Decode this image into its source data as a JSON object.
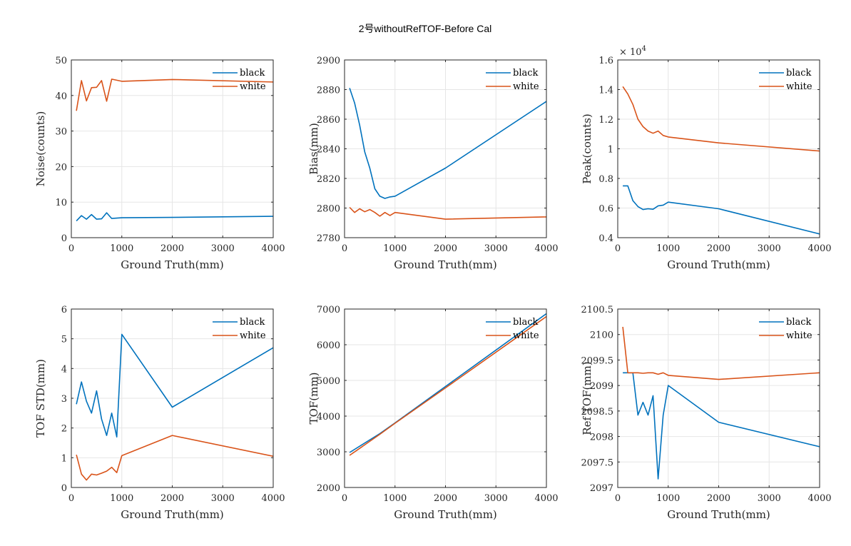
{
  "figure_title": "2号withoutRefTOF-Before Cal",
  "colors": {
    "black": "#0072BD",
    "white": "#D95319"
  },
  "chart_data": [
    {
      "type": "line",
      "xlabel": "Ground Truth(mm)",
      "ylabel": "Noise(counts)",
      "xlim": [
        0,
        4000
      ],
      "ylim": [
        0,
        50
      ],
      "xticks": [
        0,
        1000,
        2000,
        3000,
        4000
      ],
      "yticks": [
        0,
        10,
        20,
        30,
        40,
        50
      ],
      "grid": true,
      "legend_position": "top-right",
      "exponent": "",
      "series": [
        {
          "name": "black",
          "x": [
            100,
            200,
            300,
            400,
            500,
            600,
            700,
            800,
            1000,
            2000,
            4000
          ],
          "y": [
            4.7,
            6.2,
            5.2,
            6.5,
            5.2,
            5.3,
            7.0,
            5.4,
            5.6,
            5.7,
            6.0
          ]
        },
        {
          "name": "white",
          "x": [
            100,
            200,
            300,
            400,
            500,
            600,
            700,
            800,
            1000,
            2000,
            4000
          ],
          "y": [
            35.7,
            44.2,
            38.5,
            42.2,
            42.3,
            44.2,
            38.4,
            44.6,
            44.0,
            44.5,
            43.8
          ]
        }
      ]
    },
    {
      "type": "line",
      "xlabel": "Ground Truth(mm)",
      "ylabel": "Bias(mm)",
      "xlim": [
        0,
        4000
      ],
      "ylim": [
        2780,
        2900
      ],
      "xticks": [
        0,
        1000,
        2000,
        3000,
        4000
      ],
      "yticks": [
        2780,
        2800,
        2820,
        2840,
        2860,
        2880,
        2900
      ],
      "grid": true,
      "legend_position": "top-right",
      "exponent": "",
      "series": [
        {
          "name": "black",
          "x": [
            100,
            200,
            300,
            400,
            500,
            600,
            700,
            800,
            900,
            1000,
            2000,
            4000
          ],
          "y": [
            2881,
            2871,
            2856,
            2838,
            2827,
            2813,
            2808,
            2806.5,
            2807.5,
            2808,
            2827,
            2872
          ]
        },
        {
          "name": "white",
          "x": [
            100,
            200,
            300,
            400,
            500,
            600,
            700,
            800,
            900,
            1000,
            2000,
            4000
          ],
          "y": [
            2800.5,
            2797,
            2799.5,
            2797.5,
            2799,
            2797,
            2794.5,
            2797,
            2795,
            2797,
            2792.5,
            2794
          ]
        }
      ]
    },
    {
      "type": "line",
      "xlabel": "Ground Truth(mm)",
      "ylabel": "Peak(counts)",
      "xlim": [
        0,
        4000
      ],
      "ylim": [
        4000,
        16000
      ],
      "xticks": [
        0,
        1000,
        2000,
        3000,
        4000
      ],
      "yticks": [
        4000,
        6000,
        8000,
        10000,
        12000,
        14000,
        16000
      ],
      "ytick_labels": [
        "0.4",
        "0.6",
        "0.8",
        "1",
        "1.2",
        "1.4",
        "1.6"
      ],
      "grid": true,
      "legend_position": "top-right",
      "exponent": "×10^4",
      "exponent_base": "× 10",
      "exponent_power": "4",
      "series": [
        {
          "name": "black",
          "x": [
            100,
            200,
            300,
            400,
            500,
            600,
            700,
            800,
            900,
            1000,
            2000,
            4000
          ],
          "y": [
            7500,
            7500,
            6500,
            6100,
            5900,
            5950,
            5920,
            6150,
            6200,
            6400,
            5950,
            4250
          ]
        },
        {
          "name": "white",
          "x": [
            100,
            200,
            300,
            400,
            500,
            600,
            700,
            800,
            900,
            1000,
            2000,
            4000
          ],
          "y": [
            14200,
            13700,
            13000,
            12000,
            11500,
            11200,
            11050,
            11200,
            10900,
            10800,
            10400,
            9850
          ]
        }
      ]
    },
    {
      "type": "line",
      "xlabel": "Ground Truth(mm)",
      "ylabel": "TOF STD(mm)",
      "xlim": [
        0,
        4000
      ],
      "ylim": [
        0,
        6
      ],
      "xticks": [
        0,
        1000,
        2000,
        3000,
        4000
      ],
      "yticks": [
        0,
        1,
        2,
        3,
        4,
        5,
        6
      ],
      "grid": true,
      "legend_position": "top-right",
      "exponent": "",
      "series": [
        {
          "name": "black",
          "x": [
            100,
            200,
            300,
            400,
            500,
            600,
            700,
            800,
            900,
            1000,
            2000,
            4000
          ],
          "y": [
            2.8,
            3.55,
            2.9,
            2.5,
            3.25,
            2.3,
            1.75,
            2.5,
            1.7,
            5.15,
            2.7,
            4.7
          ]
        },
        {
          "name": "white",
          "x": [
            100,
            200,
            300,
            400,
            500,
            600,
            700,
            800,
            900,
            1000,
            2000,
            4000
          ],
          "y": [
            1.1,
            0.45,
            0.25,
            0.45,
            0.42,
            0.48,
            0.55,
            0.68,
            0.5,
            1.07,
            1.75,
            1.05
          ]
        }
      ]
    },
    {
      "type": "line",
      "xlabel": "Ground Truth(mm)",
      "ylabel": "TOF(mm)",
      "xlim": [
        0,
        4000
      ],
      "ylim": [
        2000,
        7000
      ],
      "xticks": [
        0,
        1000,
        2000,
        3000,
        4000
      ],
      "yticks": [
        2000,
        3000,
        4000,
        5000,
        6000,
        7000
      ],
      "grid": true,
      "legend_position": "top-right",
      "exponent": "",
      "series": [
        {
          "name": "black",
          "x": [
            100,
            700,
            1000,
            2000,
            4000
          ],
          "y": [
            2980,
            3510,
            3810,
            4830,
            6870
          ]
        },
        {
          "name": "white",
          "x": [
            100,
            700,
            1000,
            2000,
            4000
          ],
          "y": [
            2900,
            3490,
            3800,
            4790,
            6790
          ]
        }
      ]
    },
    {
      "type": "line",
      "xlabel": "Ground Truth(mm)",
      "ylabel": "Ref TOF(mm)",
      "xlim": [
        0,
        4000
      ],
      "ylim": [
        2097,
        2100.5
      ],
      "xticks": [
        0,
        1000,
        2000,
        3000,
        4000
      ],
      "yticks": [
        2097,
        2097.5,
        2098,
        2098.5,
        2099,
        2099.5,
        2100,
        2100.5
      ],
      "grid": true,
      "legend_position": "top-right",
      "exponent": "",
      "series": [
        {
          "name": "black",
          "x": [
            100,
            200,
            300,
            400,
            500,
            600,
            700,
            800,
            900,
            1000,
            2000,
            4000
          ],
          "y": [
            2099.25,
            2099.25,
            2099.25,
            2098.42,
            2098.67,
            2098.42,
            2098.8,
            2097.17,
            2098.42,
            2099.0,
            2098.28,
            2097.8
          ]
        },
        {
          "name": "white",
          "x": [
            100,
            200,
            300,
            400,
            500,
            600,
            700,
            800,
            900,
            1000,
            2000,
            4000
          ],
          "y": [
            2100.15,
            2099.25,
            2099.25,
            2099.25,
            2099.24,
            2099.25,
            2099.25,
            2099.22,
            2099.25,
            2099.2,
            2099.12,
            2099.25
          ]
        }
      ]
    }
  ]
}
